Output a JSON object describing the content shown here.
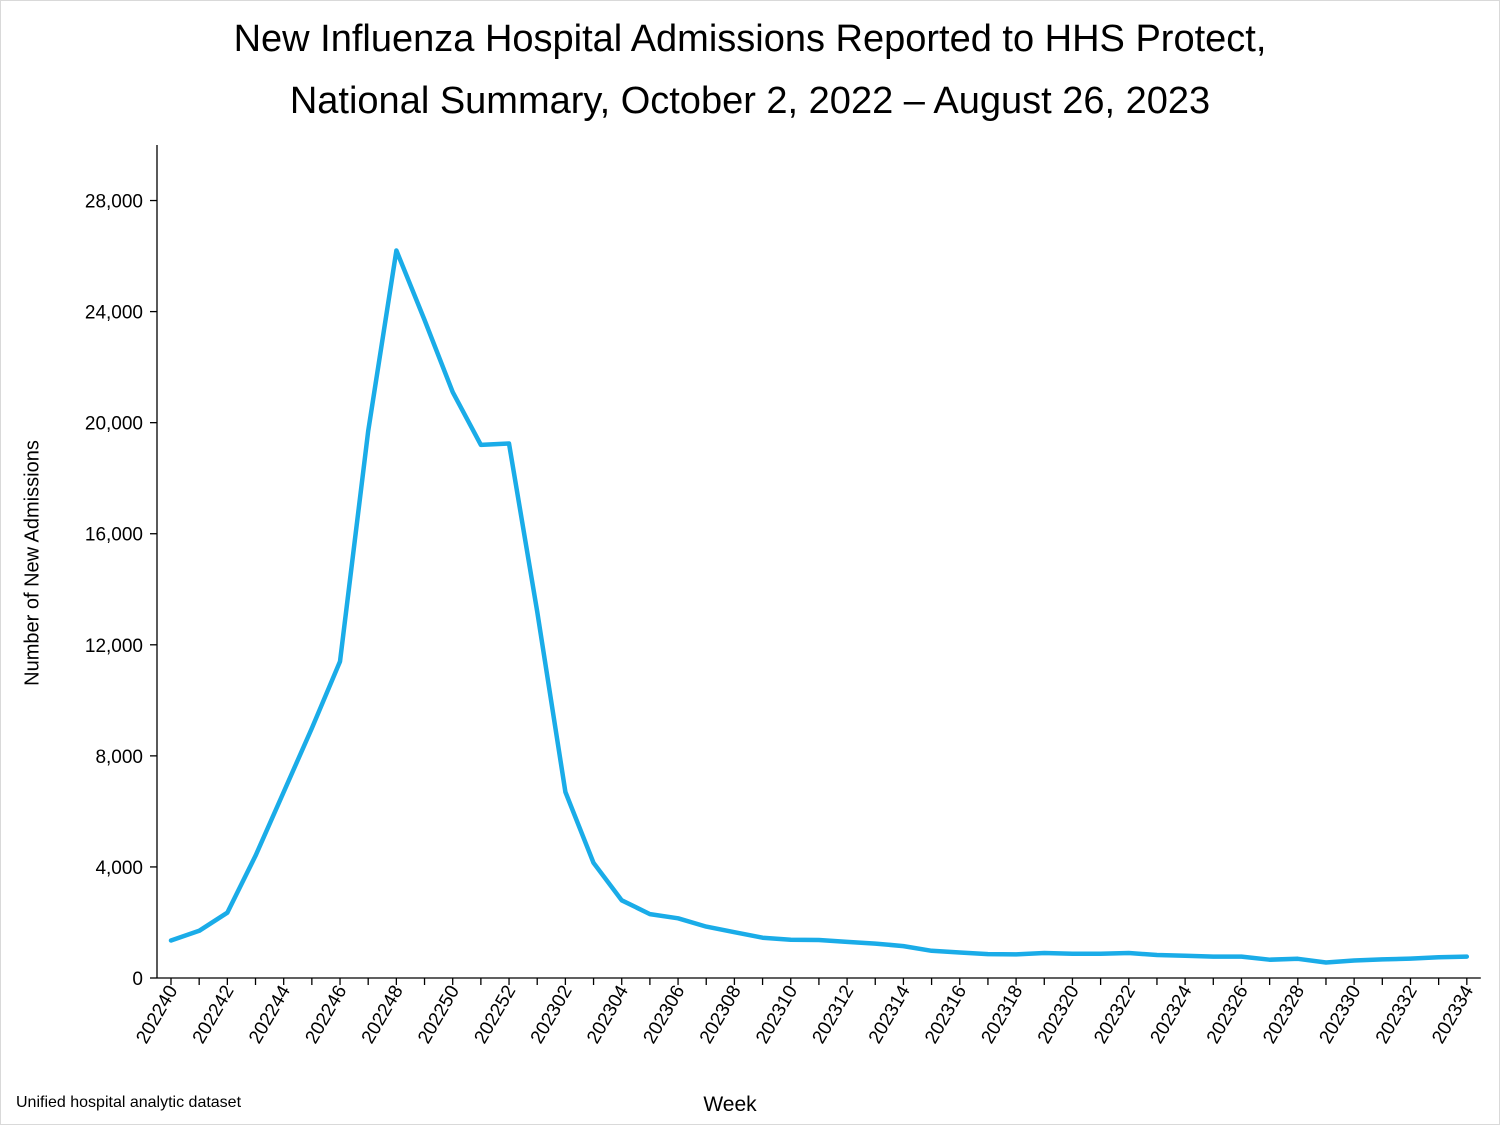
{
  "title_line1": "New Influenza Hospital Admissions Reported to HHS Protect,",
  "title_line2": "National Summary, October 2, 2022 – August 26, 2023",
  "source_note": "Unified hospital analytic dataset",
  "chart_data": {
    "type": "line",
    "xlabel": "Week",
    "ylabel": "Number of New Admissions",
    "ylim": [
      0,
      30000
    ],
    "y_ticks": [
      0,
      4000,
      8000,
      12000,
      16000,
      20000,
      24000,
      28000
    ],
    "y_tick_labels": [
      "0",
      "4,000",
      "8,000",
      "12,000",
      "16,000",
      "20,000",
      "24,000",
      "28,000"
    ],
    "x_tick_labels": [
      "202240",
      "202242",
      "202244",
      "202246",
      "202248",
      "202250",
      "202252",
      "202302",
      "202304",
      "202306",
      "202308",
      "202310",
      "202312",
      "202314",
      "202316",
      "202318",
      "202320",
      "202322",
      "202324",
      "202326",
      "202328",
      "202330",
      "202332",
      "202334"
    ],
    "grid": false,
    "line_color": "#1aace8",
    "weeks": [
      "202240",
      "202241",
      "202242",
      "202243",
      "202244",
      "202245",
      "202246",
      "202247",
      "202248",
      "202249",
      "202250",
      "202251",
      "202252",
      "202301",
      "202302",
      "202303",
      "202304",
      "202305",
      "202306",
      "202307",
      "202308",
      "202309",
      "202310",
      "202311",
      "202312",
      "202313",
      "202314",
      "202315",
      "202316",
      "202317",
      "202318",
      "202319",
      "202320",
      "202321",
      "202322",
      "202323",
      "202324",
      "202325",
      "202326",
      "202327",
      "202328",
      "202329",
      "202330",
      "202331",
      "202332",
      "202333",
      "202334"
    ],
    "values": [
      1350,
      1700,
      2350,
      4400,
      6700,
      9000,
      11400,
      19700,
      26200,
      23700,
      21100,
      19200,
      19250,
      13200,
      6700,
      4150,
      2800,
      2300,
      2150,
      1850,
      1650,
      1450,
      1380,
      1370,
      1300,
      1240,
      1150,
      980,
      920,
      860,
      850,
      900,
      870,
      870,
      900,
      830,
      800,
      770,
      770,
      660,
      690,
      560,
      630,
      670,
      700,
      750,
      770
    ]
  }
}
